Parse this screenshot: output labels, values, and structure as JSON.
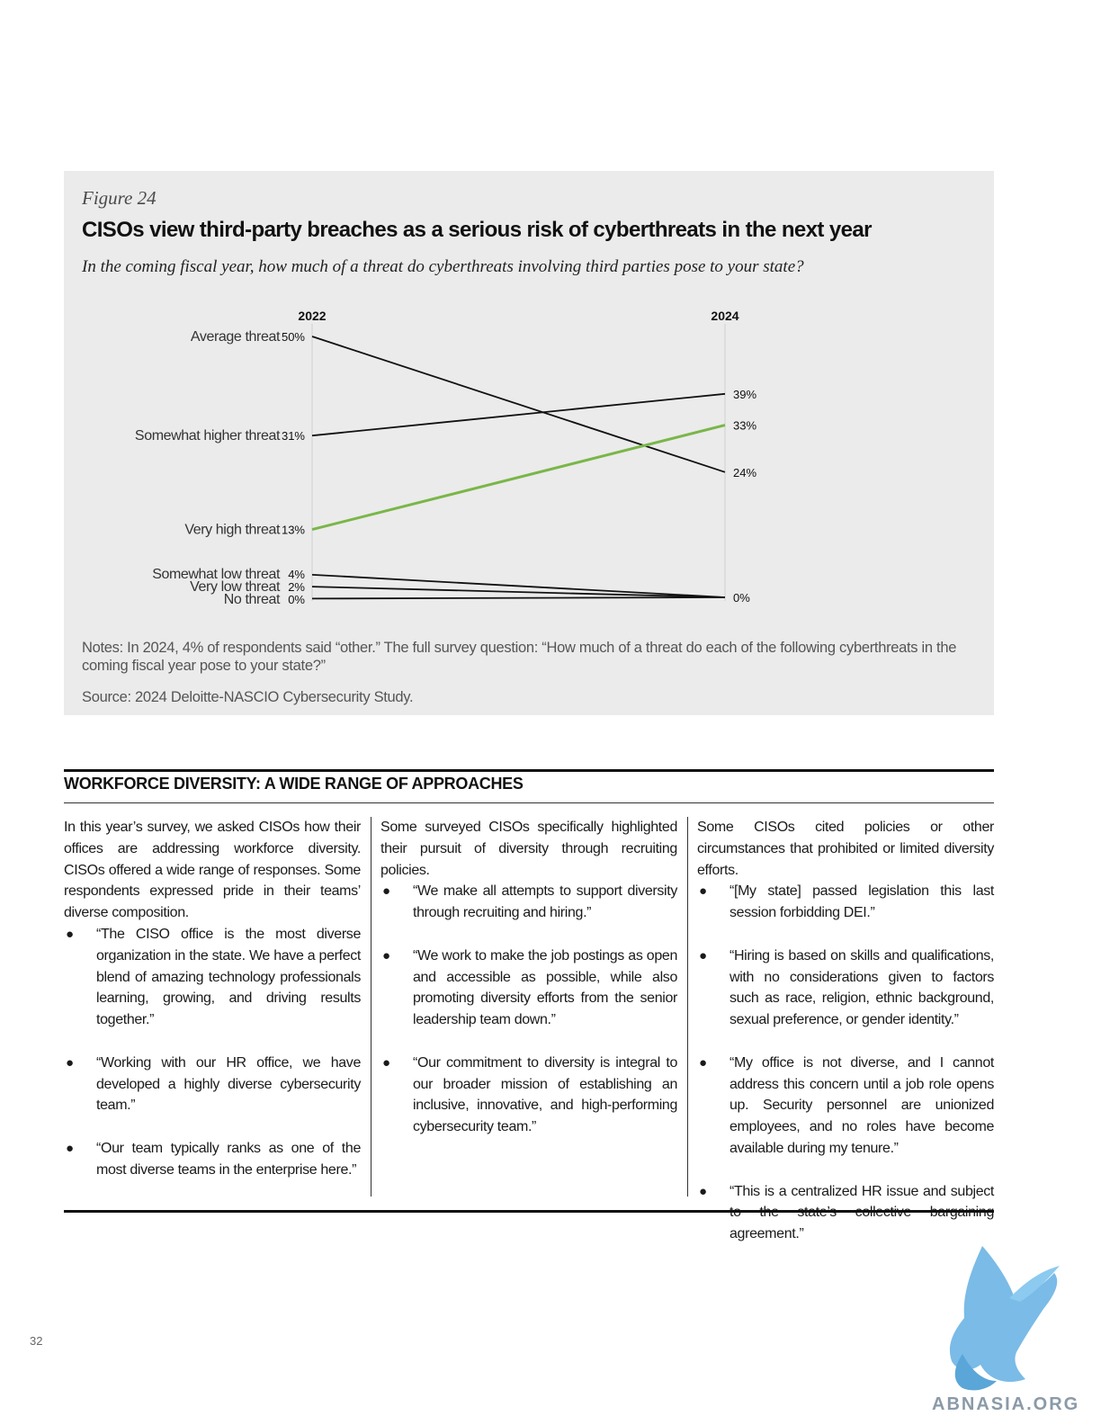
{
  "figure": {
    "label": "Figure 24",
    "title": "CISOs view third-party breaches as a serious risk of cyberthreats in the next year",
    "question": "In the coming fiscal year, how much of a threat do cyberthreats involving third parties pose to your state?",
    "notes": "Notes: In 2024, 4% of respondents said “other.” The full survey question: “How much of a threat do each of the following cyberthreats in the coming fiscal year pose to your state?”",
    "source": "Source: 2024 Deloitte-NASCIO Cybersecurity Study."
  },
  "chart_data": {
    "type": "line",
    "x": [
      "2022",
      "2024"
    ],
    "series": [
      {
        "name": "Average threat",
        "values": [
          50,
          24
        ],
        "labels": [
          "50%",
          "24%"
        ],
        "color": "#111111"
      },
      {
        "name": "Somewhat higher threat",
        "values": [
          31,
          39
        ],
        "labels": [
          "31%",
          "39%"
        ],
        "color": "#111111"
      },
      {
        "name": "Very high threat",
        "values": [
          13,
          33
        ],
        "labels": [
          "13%",
          "33%"
        ],
        "color": "#7ab648"
      },
      {
        "name": "Somewhat low threat",
        "values": [
          4,
          0
        ],
        "labels": [
          "4%",
          ""
        ],
        "color": "#111111"
      },
      {
        "name": "Very low threat",
        "values": [
          2,
          0
        ],
        "labels": [
          "2%",
          ""
        ],
        "color": "#111111"
      },
      {
        "name": "No threat",
        "values": [
          0,
          0
        ],
        "labels": [
          "0%",
          "0%"
        ],
        "color": "#111111"
      }
    ],
    "ylim": [
      0,
      50
    ]
  },
  "workforce": {
    "heading": "WORKFORCE DIVERSITY: A WIDE RANGE OF APPROACHES",
    "columns": [
      {
        "intro": "In this year’s survey, we asked CISOs how their offices are addressing workforce diversity. CISOs offered a wide range of responses. Some respondents expressed pride in their teams’ diverse composition.",
        "bullets": [
          "“The CISO office is the most diverse organization in the state. We have a perfect blend of amazing technology professionals learning, growing, and driving results together.”",
          "“Working with our HR office, we have developed a highly diverse cybersecurity team.”",
          "“Our team typically ranks as one of the most diverse teams in the enterprise here.”"
        ]
      },
      {
        "intro": "Some surveyed CISOs specifically highlighted their pursuit of diversity through recruiting policies.",
        "bullets": [
          "“We make all attempts to support diversity through recruiting and hiring.”",
          "“We work to make the job postings as open and accessible as possible, while also promoting diversity efforts from the senior leadership team down.”",
          "“Our commitment to diversity is integral to our broader mission of establishing an inclusive, innovative, and high-performing cybersecurity team.”"
        ]
      },
      {
        "intro": "Some CISOs cited policies or other circumstances that prohibited or limited diversity efforts.",
        "bullets": [
          "“[My state] passed legislation this last session forbidding DEI.”",
          "“Hiring is based on skills and qualifications, with no considerations given to factors such as race, religion, ethnic background, sexual preference, or gender identity.”",
          "“My office is not diverse, and I cannot address this concern until a job role opens up. Security personnel are unionized employees, and no roles have become available during my tenure.”",
          "“This is a centralized HR issue and subject to the state’s collective bargaining agreement.”"
        ]
      }
    ]
  },
  "page_number": "32",
  "logo": {
    "text": "ABNASIA.ORG",
    "color": "#6cb4e4",
    "icon": "griffin-logo-icon"
  }
}
